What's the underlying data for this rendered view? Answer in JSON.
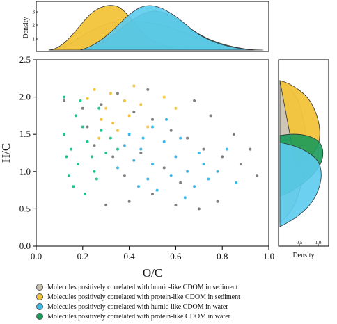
{
  "chart_data": {
    "type": "scatter",
    "xlabel": "O/C",
    "ylabel": "H/C",
    "xlim": [
      0.0,
      1.0
    ],
    "ylim": [
      0.0,
      2.5
    ],
    "x_ticks": [
      "0.0",
      "0.2",
      "0.4",
      "0.6",
      "0.8",
      "1.0"
    ],
    "y_ticks": [
      "0.0",
      "0.5",
      "1.0",
      "1.5",
      "2.0",
      "2.5"
    ],
    "grid": false,
    "series": [
      {
        "name": "Molecules positively correlated with humic-like CDOM in sediment",
        "color": "#7f7f7f",
        "points": [
          [
            0.12,
            1.95
          ],
          [
            0.2,
            1.85
          ],
          [
            0.28,
            1.9
          ],
          [
            0.35,
            2.05
          ],
          [
            0.42,
            1.8
          ],
          [
            0.5,
            1.7
          ],
          [
            0.58,
            1.55
          ],
          [
            0.65,
            1.45
          ],
          [
            0.72,
            1.3
          ],
          [
            0.8,
            1.2
          ],
          [
            0.88,
            1.1
          ],
          [
            0.95,
            0.95
          ],
          [
            0.3,
            0.55
          ],
          [
            0.4,
            0.6
          ],
          [
            0.5,
            0.7
          ],
          [
            0.6,
            0.55
          ],
          [
            0.7,
            0.5
          ],
          [
            0.78,
            0.6
          ],
          [
            0.45,
            1.25
          ],
          [
            0.55,
            1.05
          ],
          [
            0.62,
            0.85
          ],
          [
            0.25,
            1.35
          ],
          [
            0.33,
            1.2
          ],
          [
            0.68,
            1.95
          ],
          [
            0.75,
            1.75
          ],
          [
            0.85,
            1.5
          ],
          [
            0.92,
            1.3
          ],
          [
            0.38,
            0.95
          ],
          [
            0.22,
            1.6
          ],
          [
            0.48,
            2.1
          ]
        ]
      },
      {
        "name": "Molecules positively correlated with protein-like CDOM in sediment",
        "color": "#f2c43a",
        "points": [
          [
            0.25,
            2.1
          ],
          [
            0.32,
            2.05
          ],
          [
            0.38,
            1.95
          ],
          [
            0.3,
            1.85
          ],
          [
            0.42,
            2.15
          ],
          [
            0.28,
            1.7
          ],
          [
            0.35,
            1.55
          ],
          [
            0.45,
            1.9
          ],
          [
            0.22,
            1.98
          ],
          [
            0.4,
            1.75
          ],
          [
            0.55,
            2.0
          ],
          [
            0.33,
            1.65
          ],
          [
            0.48,
            1.6
          ],
          [
            0.6,
            1.85
          ],
          [
            0.27,
            1.45
          ]
        ]
      },
      {
        "name": "Molecules positively correlated with humic-like CDOM in water",
        "color": "#3cb8e6",
        "points": [
          [
            0.4,
            1.5
          ],
          [
            0.45,
            1.3
          ],
          [
            0.5,
            1.1
          ],
          [
            0.55,
            1.4
          ],
          [
            0.6,
            1.2
          ],
          [
            0.65,
            1.0
          ],
          [
            0.7,
            1.25
          ],
          [
            0.48,
            0.9
          ],
          [
            0.52,
            0.75
          ],
          [
            0.58,
            0.95
          ],
          [
            0.62,
            1.45
          ],
          [
            0.68,
            0.8
          ],
          [
            0.72,
            1.1
          ],
          [
            0.78,
            1.0
          ],
          [
            0.42,
            1.15
          ],
          [
            0.38,
            1.35
          ],
          [
            0.35,
            1.05
          ],
          [
            0.5,
            1.6
          ],
          [
            0.56,
            1.7
          ],
          [
            0.44,
            0.8
          ],
          [
            0.64,
            0.65
          ],
          [
            0.74,
            0.9
          ],
          [
            0.82,
            1.3
          ],
          [
            0.86,
            0.85
          ],
          [
            0.46,
            1.45
          ]
        ]
      },
      {
        "name": "Molecules positively correlated with protein-like CDOM in water",
        "color": "#1fc68a",
        "points": [
          [
            0.12,
            1.5
          ],
          [
            0.15,
            1.3
          ],
          [
            0.18,
            1.1
          ],
          [
            0.2,
            1.6
          ],
          [
            0.22,
            1.4
          ],
          [
            0.24,
            1.2
          ],
          [
            0.26,
            0.9
          ],
          [
            0.14,
            0.95
          ],
          [
            0.17,
            1.75
          ],
          [
            0.28,
            1.55
          ],
          [
            0.3,
            1.25
          ],
          [
            0.19,
            1.95
          ],
          [
            0.13,
            1.2
          ],
          [
            0.25,
            1.0
          ],
          [
            0.32,
            1.45
          ],
          [
            0.16,
            0.8
          ],
          [
            0.21,
            0.7
          ],
          [
            0.27,
            1.85
          ],
          [
            0.35,
            1.3
          ],
          [
            0.12,
            2.0
          ]
        ]
      }
    ],
    "top_density": {
      "ylabel": "Density",
      "y_ticks": [
        "1",
        "2",
        "3"
      ]
    },
    "right_density": {
      "xlabel": "Density",
      "x_ticks": [
        "0.5",
        "1.0"
      ]
    }
  },
  "legend": [
    {
      "label": "Molecules positively correlated with humic-like CDOM in sediment",
      "color": "#c9c1b0"
    },
    {
      "label": "Molecules positively correlated with protein-like CDOM in sediment",
      "color": "#f2c43a"
    },
    {
      "label": "Molecules positively correlated with humic-like CDOM in water",
      "color": "#3cb8e6"
    },
    {
      "label": "Molecules positively correlated with protein-like CDOM in water",
      "color": "#1a9a5a"
    }
  ]
}
